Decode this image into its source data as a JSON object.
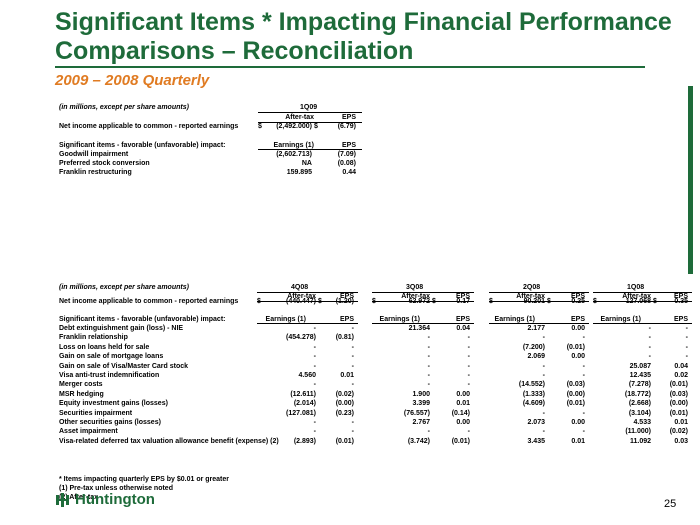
{
  "title": "Significant Items * Impacting Financial Performance Comparisons – Reconciliation",
  "subtitle": "2009 – 2008 Quarterly",
  "top": {
    "units": "(in millions, except per share amounts)",
    "period": "1Q09",
    "h_aftertax": "After-tax",
    "h_eps": "EPS",
    "ni_label": "Net income applicable to common - reported earnings",
    "ni_aftertax": "(2,492.000)",
    "ni_eps": "(6.79)",
    "sig_label": "Significant items - favorable (unfavorable) impact:",
    "sig_earn": "Earnings (1)",
    "sig_eps": "EPS",
    "rows": [
      {
        "label": "Goodwill impairment",
        "v": "(2,602.713)",
        "e": "(7.09)"
      },
      {
        "label": "Preferred stock conversion",
        "v": "NA",
        "e": "(0.08)"
      },
      {
        "label": "Franklin restructuring",
        "v": "159.895",
        "e": "0.44"
      }
    ]
  },
  "bottom": {
    "units": "(in millions, except per share amounts)",
    "periods": [
      "4Q08",
      "3Q08",
      "2Q08",
      "1Q08"
    ],
    "h_aftertax": "After-tax",
    "h_eps": "EPS",
    "ni_label": "Net income applicable to common - reported earnings",
    "ni": [
      {
        "v": "(440.447)",
        "e": "(1.20)"
      },
      {
        "v": "62.972",
        "e": "0.17"
      },
      {
        "v": "90.201",
        "e": "0.25"
      },
      {
        "v": "127.068",
        "e": "0.35"
      }
    ],
    "sig_label": "Significant items - favorable (unfavorable) impact:",
    "sig_earn": "Earnings (1)",
    "sig_eps": "EPS",
    "rows": [
      {
        "label": "Debt extinguishment gain (loss) - NIE",
        "c": [
          "-",
          "-",
          "21.364",
          "0.04",
          "2.177",
          "0.00",
          "-",
          "-"
        ]
      },
      {
        "label": "Franklin relationship",
        "c": [
          "(454.278)",
          "(0.81)",
          "-",
          "-",
          "-",
          "-",
          "-",
          "-"
        ]
      },
      {
        "label": "Loss on loans held for sale",
        "c": [
          "-",
          "-",
          "-",
          "-",
          "(7.200)",
          "(0.01)",
          "-",
          "-"
        ]
      },
      {
        "label": "Gain on sale of mortgage loans",
        "c": [
          "-",
          "-",
          "-",
          "-",
          "2.069",
          "0.00",
          "-",
          "-"
        ]
      },
      {
        "label": "Gain on sale of Visa/Master Card stock",
        "c": [
          "-",
          "-",
          "-",
          "-",
          "-",
          "-",
          "25.087",
          "0.04"
        ]
      },
      {
        "label": "Visa anti-trust indemnification",
        "c": [
          "4.560",
          "0.01",
          "-",
          "-",
          "-",
          "-",
          "12.435",
          "0.02"
        ]
      },
      {
        "label": "Merger costs",
        "c": [
          "-",
          "-",
          "-",
          "-",
          "(14.552)",
          "(0.03)",
          "(7.278)",
          "(0.01)"
        ]
      },
      {
        "label": "MSR hedging",
        "c": [
          "(12.611)",
          "(0.02)",
          "1.900",
          "0.00",
          "(1.333)",
          "(0.00)",
          "(18.772)",
          "(0.03)"
        ]
      },
      {
        "label": "Equity investment gains (losses)",
        "c": [
          "(2.014)",
          "(0.00)",
          "3.399",
          "0.01",
          "(4.609)",
          "(0.01)",
          "(2.668)",
          "(0.00)"
        ]
      },
      {
        "label": "Securities impairment",
        "c": [
          "(127.081)",
          "(0.23)",
          "(76.557)",
          "(0.14)",
          "-",
          "-",
          "(3.104)",
          "(0.01)"
        ]
      },
      {
        "label": "Other securities gains (losses)",
        "c": [
          "-",
          "-",
          "2.767",
          "0.00",
          "2.073",
          "0.00",
          "4.533",
          "0.01"
        ]
      },
      {
        "label": "Asset impairment",
        "c": [
          "-",
          "-",
          "-",
          "-",
          "-",
          "-",
          "(11.000)",
          "(0.02)"
        ]
      },
      {
        "label": "Visa-related deferred tax valuation allowance benefit (expense) (2)",
        "c": [
          "(2.893)",
          "(0.01)",
          "(3.742)",
          "(0.01)",
          "3.435",
          "0.01",
          "11.092",
          "0.03"
        ]
      }
    ]
  },
  "footnotes": [
    "* Items impacting quarterly EPS by $0.01 or greater",
    "(1) Pre-tax unless otherwise noted",
    "(2) After-tax"
  ],
  "logo_text": "Huntington",
  "page_number": "25",
  "colors": {
    "title": "#1e6b3a",
    "subtitle": "#e07b22",
    "accent_bar": "#1e6b3a"
  }
}
